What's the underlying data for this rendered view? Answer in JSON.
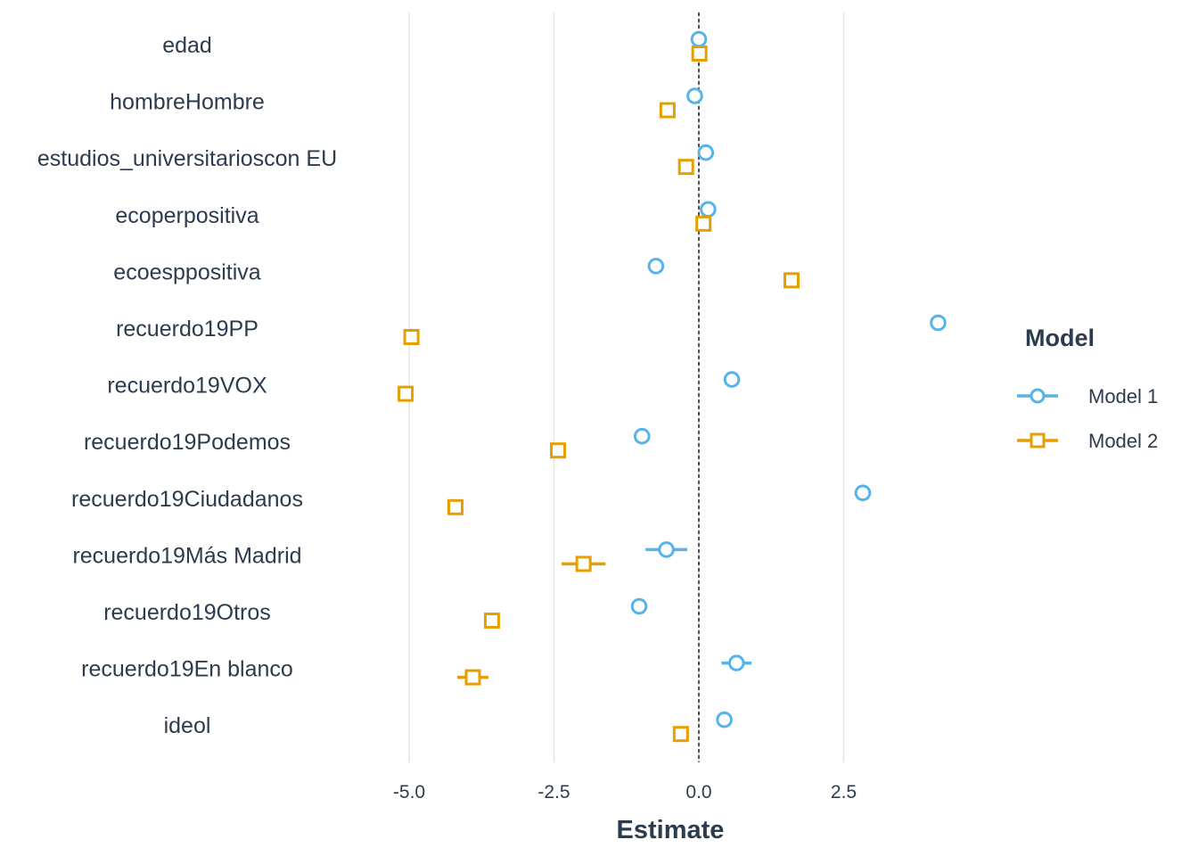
{
  "chart_data": {
    "type": "scatter",
    "subtype": "coefficient-plot",
    "title": "",
    "xlabel": "Estimate",
    "ylabel": "",
    "xlim": [
      -6.0,
      4.4
    ],
    "xticks": [
      -5.0,
      -2.5,
      0.0,
      2.5
    ],
    "xtick_labels": [
      "-5.0",
      "-2.5",
      "0.0",
      "2.5"
    ],
    "reference_line": 0,
    "terms": [
      "edad",
      "hombreHombre",
      "estudios_universitarioscon EU",
      "ecoperpositiva",
      "ecoesppositiva",
      "recuerdo19PP",
      "recuerdo19VOX",
      "recuerdo19Podemos",
      "recuerdo19Ciudadanos",
      "recuerdo19Más Madrid",
      "recuerdo19Otros",
      "recuerdo19En blanco",
      "ideol"
    ],
    "legend": {
      "title": "Model",
      "position": "right"
    },
    "series": [
      {
        "name": "Model 1",
        "color": "#56b4e9",
        "marker": "circle",
        "estimates": [
          0.0,
          -0.07,
          0.12,
          0.16,
          -0.74,
          4.13,
          0.57,
          -0.98,
          2.83,
          -0.56,
          -1.03,
          0.65,
          0.44
        ],
        "ci_low": [
          -0.02,
          -0.1,
          0.09,
          0.13,
          -0.78,
          4.1,
          0.54,
          -1.02,
          2.8,
          -0.92,
          -1.06,
          0.39,
          0.41
        ],
        "ci_high": [
          0.02,
          -0.04,
          0.15,
          0.19,
          -0.7,
          4.16,
          0.6,
          -0.94,
          2.86,
          -0.2,
          -1.0,
          0.91,
          0.47
        ]
      },
      {
        "name": "Model 2",
        "color": "#e69f00",
        "marker": "square",
        "estimates": [
          0.01,
          -0.54,
          -0.22,
          0.08,
          1.6,
          -4.96,
          -5.06,
          -2.43,
          -4.2,
          -1.99,
          -3.57,
          -3.9,
          -0.31
        ],
        "ci_low": [
          -0.01,
          -0.57,
          -0.25,
          0.05,
          1.57,
          -4.99,
          -5.12,
          -2.46,
          -4.23,
          -2.37,
          -3.6,
          -4.17,
          -0.34
        ],
        "ci_high": [
          0.03,
          -0.51,
          -0.19,
          0.11,
          1.63,
          -4.93,
          -5.0,
          -2.4,
          -4.17,
          -1.61,
          -3.54,
          -3.63,
          -0.28
        ]
      }
    ]
  }
}
